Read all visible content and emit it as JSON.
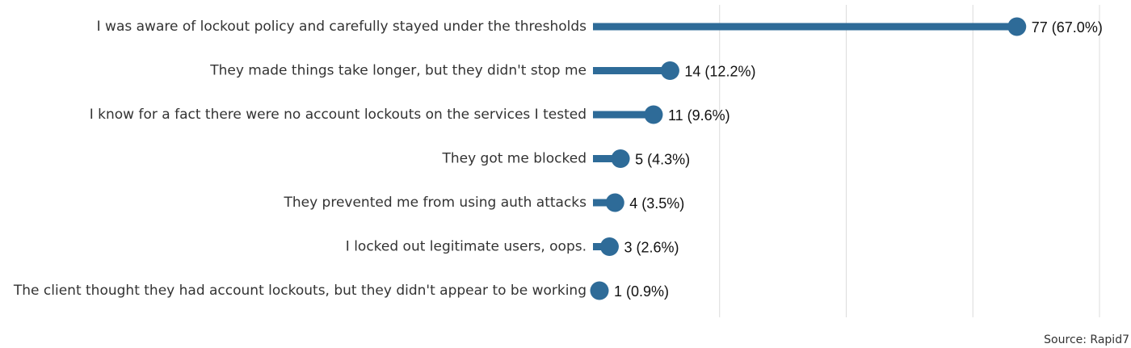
{
  "chart_data": {
    "type": "bar",
    "orientation": "horizontal",
    "style": "lollipop",
    "categories": [
      "I was aware of lockout policy and carefully stayed under the thresholds",
      "They made things take longer, but they didn't stop me",
      "I know for a fact there were no account lockouts on the services I tested",
      "They got me blocked",
      "They prevented me from using auth attacks",
      "I locked out legitimate users, oops.",
      "The client thought they had account lockouts, but they didn't appear to be working"
    ],
    "values": [
      77,
      14,
      11,
      5,
      4,
      3,
      1
    ],
    "value_labels": [
      "77 (67.0%)",
      "14 (12.2%)",
      "11 (9.6%)",
      "5 (4.3%)",
      "4 (3.5%)",
      "3 (2.6%)",
      "1 (0.9%)"
    ],
    "xlim": [
      0,
      92
    ],
    "grid_x": [
      0,
      23,
      46,
      69,
      92
    ],
    "bar_color": "#2e6b98",
    "grid": true,
    "legend": "none"
  },
  "source": "Source: Rapid7"
}
